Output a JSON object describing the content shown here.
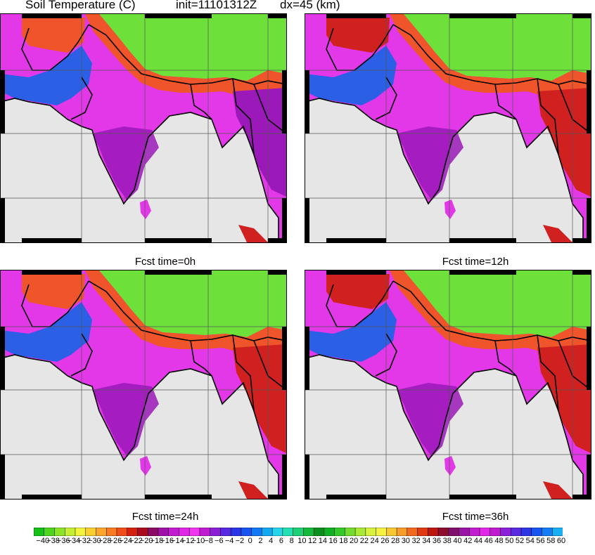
{
  "header": {
    "title": "Soil Temperature (C)",
    "init": "init=11101312Z",
    "dx": "dx=45 (km)"
  },
  "panels": [
    {
      "caption": "Fcst time=0h"
    },
    {
      "caption": "Fcst time=12h"
    },
    {
      "caption": "Fcst time=24h"
    },
    {
      "caption": "Fcst time=36h"
    }
  ],
  "colorbar": {
    "labels": [
      "-40",
      "-38",
      "-36",
      "-34",
      "-32",
      "-30",
      "-28",
      "-26",
      "-24",
      "-22",
      "-20",
      "-18",
      "-16",
      "-14",
      "-12",
      "-10",
      "-8",
      "-6",
      "-4",
      "-2",
      "0",
      "2",
      "4",
      "6",
      "8",
      "10",
      "12",
      "14",
      "16",
      "18",
      "20",
      "22",
      "24",
      "26",
      "28",
      "30",
      "32",
      "34",
      "36",
      "38",
      "40",
      "42",
      "44",
      "46",
      "48",
      "50",
      "52",
      "54",
      "56",
      "58",
      "60"
    ],
    "colors": [
      "#16c116",
      "#4fd51d",
      "#8ce32a",
      "#c6ee35",
      "#f4f43c",
      "#f8cf30",
      "#fba52a",
      "#f97b21",
      "#f04d18",
      "#d5200d",
      "#a90d1d",
      "#8b0b63",
      "#a010a8",
      "#c21cd0",
      "#e025e6",
      "#f035f0",
      "#c01bd0",
      "#8a1fd6",
      "#5729e0",
      "#2a36e6",
      "#1753f0",
      "#1279f4",
      "#15a8f2",
      "#26d5ea",
      "#22e0b4",
      "#1dcf76",
      "#14b93c",
      "#0a8e1c",
      "#0fb021",
      "#34c928",
      "#74dc30",
      "#a8ea36",
      "#d7f23c",
      "#f6f03e",
      "#f8c832",
      "#f69c28",
      "#f26a1d",
      "#e03a13",
      "#bb180f",
      "#8c0d2e",
      "#7f0e6c",
      "#9a12a6",
      "#c21cd0",
      "#e12ae8",
      "#c01bd0",
      "#8b20d8",
      "#5a2ae0",
      "#2d37e6",
      "#1655f0",
      "#127df4",
      "#1aaef2",
      "#28d6ea",
      "#23e1b5",
      "#1bce76",
      "#12b73c",
      "#0c8f1e",
      "#14b224",
      "#3dcb2a",
      "#7adc31",
      "#b0ea37",
      "#dcf33d",
      "#f7ee3e",
      "#f8c532",
      "#f6982a"
    ],
    "bar_colors_note": ""
  },
  "map_colors": {
    "land_hot": "#d02020",
    "land_warm": "#f0542a",
    "plains": "#e238e8",
    "plateau": "#9a19b8",
    "cold": "#2a5fe6",
    "tibet": "#6ee03a",
    "ocean": "#e6e6e6"
  }
}
